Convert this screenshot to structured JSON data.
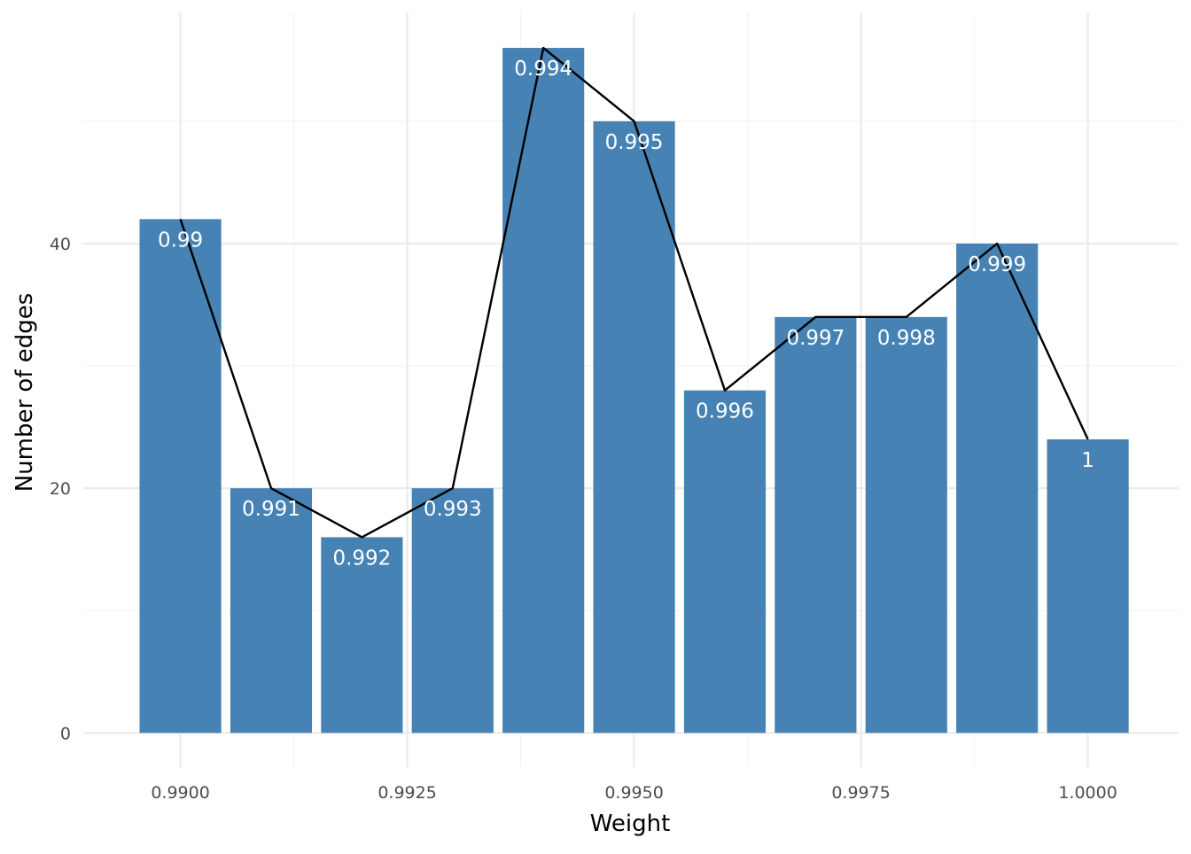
{
  "chart_data": {
    "type": "bar",
    "xlabel": "Weight",
    "ylabel": "Number of edges",
    "x": [
      0.99,
      0.991,
      0.992,
      0.993,
      0.994,
      0.995,
      0.996,
      0.997,
      0.998,
      0.999,
      1.0
    ],
    "values": [
      42,
      20,
      16,
      20,
      56,
      50,
      28,
      34,
      34,
      40,
      24
    ],
    "labels": [
      "0.99",
      "0.991",
      "0.992",
      "0.993",
      "0.994",
      "0.995",
      "0.996",
      "0.997",
      "0.998",
      "0.999",
      "1"
    ],
    "xlim": [
      0.98893,
      1.001
    ],
    "ylim": [
      -2.8,
      58.9
    ],
    "x_ticks": [
      0.99,
      0.9925,
      0.995,
      0.9975,
      1.0
    ],
    "x_tick_labels": [
      "0.9900",
      "0.9925",
      "0.9950",
      "0.9975",
      "1.0000"
    ],
    "y_ticks": [
      0,
      20,
      40
    ],
    "y_tick_labels": [
      "0",
      "20",
      "40"
    ],
    "grid": true,
    "overlay": {
      "type": "line",
      "values": [
        42,
        20,
        16,
        20,
        56,
        50,
        28,
        34,
        34,
        40,
        24
      ],
      "color": "#000000"
    },
    "colors": {
      "bar": "#4682b4",
      "grid_major": "#ebebeb",
      "grid_minor": "#f4f4f4"
    }
  }
}
